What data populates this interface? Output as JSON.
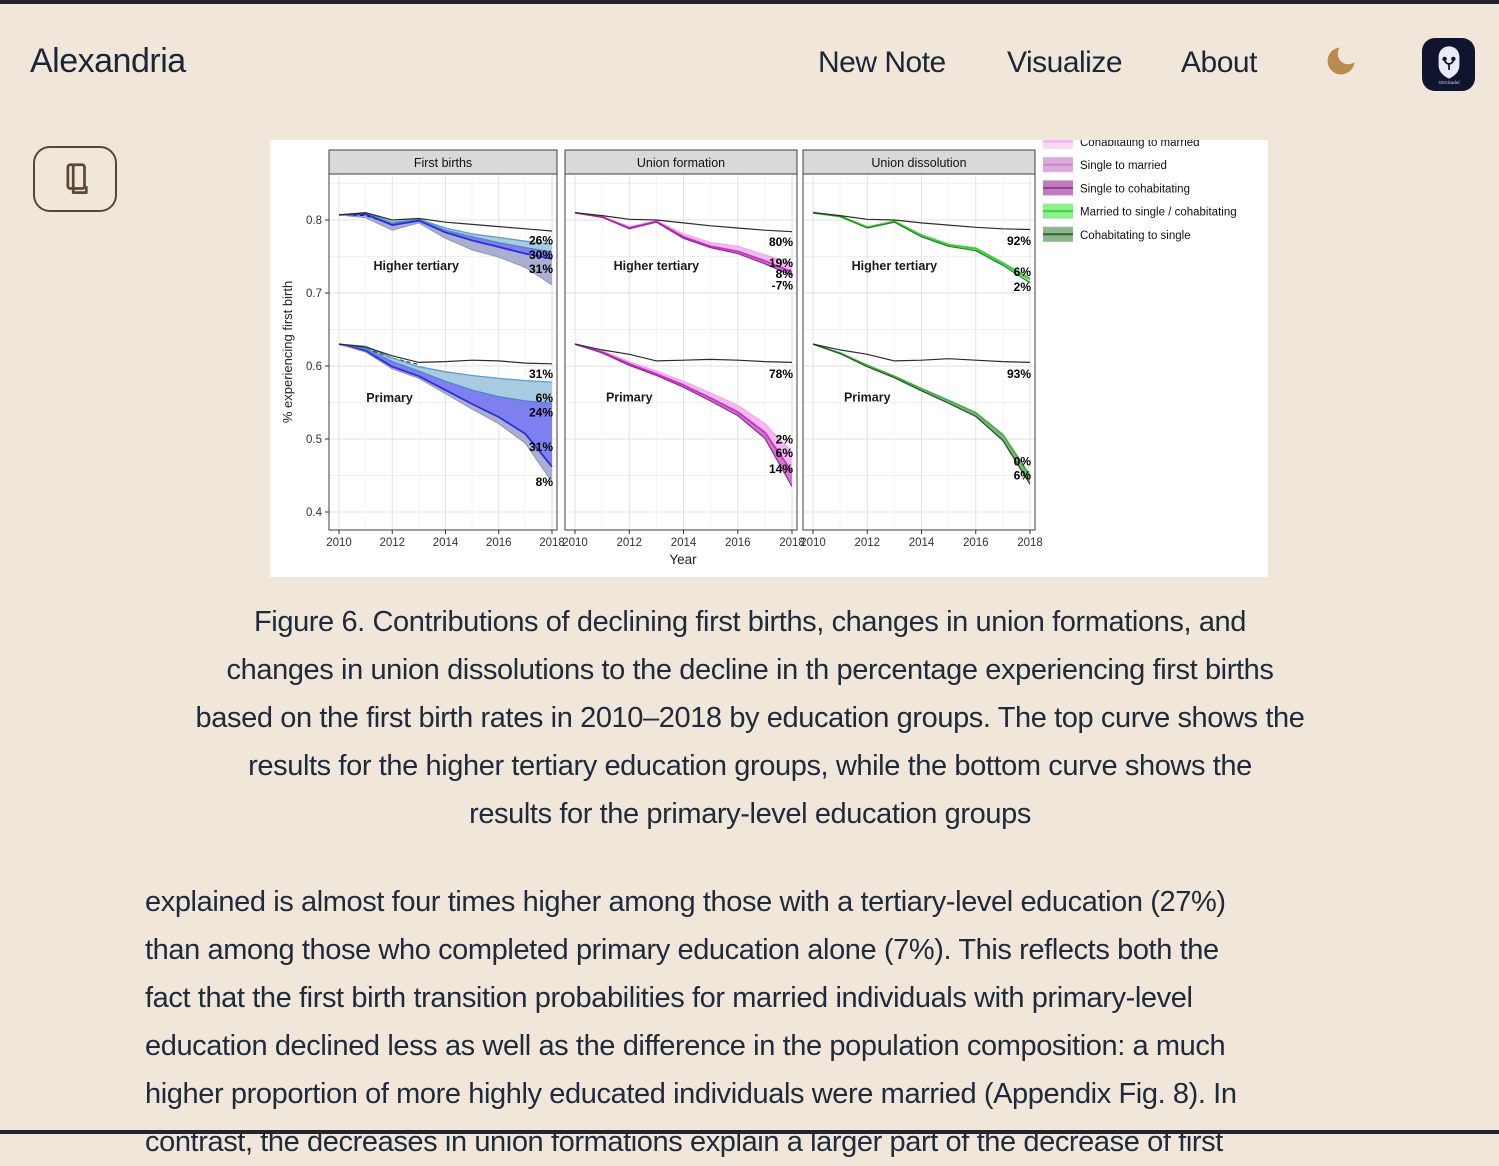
{
  "header": {
    "brand": "Alexandria",
    "nav": [
      {
        "label": "New Note"
      },
      {
        "label": "Visualize"
      },
      {
        "label": "About"
      }
    ],
    "theme_toggle_icon": "moon-icon",
    "logo_text": "GitCitadel"
  },
  "sidebar": {
    "reader_button_icon": "book-icon"
  },
  "figure": {
    "caption_lines": [
      "Figure 6. Contributions of declining first births, changes in union formations, and",
      "changes in union dissolutions to the decline in th percentage experiencing first births",
      "based on the first birth rates in 2010–2018 by education groups. The top curve shows the",
      "results for the higher tertiary education groups, while the bottom curve shows the",
      "results for the primary-level education groups"
    ]
  },
  "article": {
    "paragraph_lines": [
      "explained is almost four times higher among those with a tertiary-level education (27%)",
      "than among those who completed primary education alone (7%). This reflects both the",
      "fact that the first birth transition probabilities for married individuals with primary-level",
      "education declined less as well as the difference in the population composition: a much",
      "higher proportion of more highly educated individuals were married (Appendix Fig. 8). In",
      "contrast, the decreases in union formations explain a larger part of the decrease of first"
    ]
  },
  "chart_data": {
    "type": "area",
    "title": "",
    "xlabel": "Year",
    "ylabel": "% experiencing first birth",
    "x": [
      2010,
      2011,
      2012,
      2013,
      2014,
      2015,
      2016,
      2017,
      2018
    ],
    "xticks": [
      "2010",
      "2012",
      "2014",
      "2016",
      "2018"
    ],
    "yticks": [
      "0.4",
      "0.5",
      "0.6",
      "0.7",
      "0.8"
    ],
    "ylim": [
      0.375,
      0.863
    ],
    "grid": true,
    "legend_position": "top-right outside",
    "legend": [
      {
        "label": "Cohabitating to married",
        "fill": "#fbd7f7",
        "line": "#f3aef0"
      },
      {
        "label": "Single to married",
        "fill": "#dcaade",
        "line": "#c78bcb"
      },
      {
        "label": "Single to cohabitating",
        "fill": "#bf7cbf",
        "line": "#8e3d8e"
      },
      {
        "label": "Married to single / cohabitating",
        "fill": "#8df08d",
        "line": "#3ad43a"
      },
      {
        "label": "Cohabitating to single",
        "fill": "#8fb48f",
        "line": "#2d6b2d"
      }
    ],
    "panels": [
      {
        "title": "First births",
        "groups": [
          {
            "name": "Higher tertiary",
            "name_x": 2012.9,
            "name_v": 0.737,
            "black": [
              0.807,
              0.81,
              0.8,
              0.802,
              0.797,
              0.794,
              0.791,
              0.788,
              0.785
            ],
            "dash_x": [
              2010,
              2011,
              2012,
              2013
            ],
            "dash": [
              0.807,
              0.806,
              0.7935,
              0.8
            ],
            "edges": [
              {
                "values": [
                  0.807,
                  0.81,
                  0.797,
                  0.801,
                  0.789,
                  0.781,
                  0.776,
                  0.771,
                  0.767
                ],
                "stroke": "#5e9ac8",
                "w": 1.3
              },
              {
                "values": [
                  0.807,
                  0.809,
                  0.795,
                  0.8,
                  0.786,
                  0.777,
                  0.769,
                  0.762,
                  0.756
                ],
                "stroke": "#4f86c8",
                "w": 1.3
              },
              {
                "values": [
                  0.807,
                  0.808,
                  0.793,
                  0.799,
                  0.783,
                  0.772,
                  0.763,
                  0.754,
                  0.747
                ],
                "stroke": "#2b2de2",
                "w": 1.8
              },
              {
                "values": [
                  0.807,
                  0.803,
                  0.786,
                  0.796,
                  0.775,
                  0.759,
                  0.749,
                  0.735,
                  0.711
                ],
                "stroke": "#9094be",
                "w": 1.0
              }
            ],
            "bands": [
              {
                "top": 0,
                "bottom": 1,
                "fill": "#a9cbe2",
                "op": 1
              },
              {
                "top": 1,
                "bottom": 2,
                "fill": "#7e80f0",
                "op": 1
              },
              {
                "top": 2,
                "bottom": 3,
                "fill": "#9ba0c9",
                "op": 0.85
              }
            ],
            "labels": [
              {
                "text": "26%",
                "v": 0.772
              },
              {
                "text": "30%",
                "v": 0.752
              },
              {
                "text": "31%",
                "v": 0.733
              }
            ]
          },
          {
            "name": "Primary",
            "name_x": 2011.9,
            "name_v": 0.556,
            "black": [
              0.63,
              0.626,
              0.614,
              0.605,
              0.606,
              0.608,
              0.607,
              0.604,
              0.603
            ],
            "dash_x": [
              2010,
              2011,
              2012,
              2013
            ],
            "dash": [
              0.63,
              0.624,
              0.611,
              0.602
            ],
            "edges": [
              {
                "values": [
                  0.63,
                  0.627,
                  0.611,
                  0.599,
                  0.592,
                  0.587,
                  0.583,
                  0.58,
                  0.578
                ],
                "stroke": "#5e9ac8",
                "w": 1.3
              },
              {
                "values": [
                  0.63,
                  0.624,
                  0.606,
                  0.593,
                  0.579,
                  0.567,
                  0.558,
                  0.552,
                  0.549
                ],
                "stroke": "#4f86c8",
                "w": 1.3
              },
              {
                "values": [
                  0.63,
                  0.621,
                  0.599,
                  0.586,
                  0.567,
                  0.548,
                  0.53,
                  0.507,
                  0.462
                ],
                "stroke": "#2b2de2",
                "w": 1.8
              },
              {
                "values": [
                  0.63,
                  0.619,
                  0.596,
                  0.583,
                  0.562,
                  0.541,
                  0.521,
                  0.494,
                  0.441
                ],
                "stroke": "#9094be",
                "w": 1.0
              }
            ],
            "bands": [
              {
                "top": 0,
                "bottom": 1,
                "fill": "#a9cbe2",
                "op": 1
              },
              {
                "top": 1,
                "bottom": 2,
                "fill": "#7e80f0",
                "op": 1
              },
              {
                "top": 2,
                "bottom": 3,
                "fill": "#9ba0c9",
                "op": 0.85
              }
            ],
            "labels": [
              {
                "text": "31%",
                "v": 0.589
              },
              {
                "text": "6%",
                "v": 0.556
              },
              {
                "text": "24%",
                "v": 0.536
              },
              {
                "text": "31%",
                "v": 0.489
              },
              {
                "text": "8%",
                "v": 0.441
              }
            ]
          }
        ]
      },
      {
        "title": "Union formation",
        "groups": [
          {
            "name": "Higher tertiary",
            "name_x": 2013.0,
            "name_v": 0.737,
            "black": [
              0.81,
              0.806,
              0.801,
              0.8,
              0.796,
              0.792,
              0.789,
              0.786,
              0.784
            ],
            "edges": [
              {
                "values": [
                  0.81,
                  0.805,
                  0.791,
                  0.799,
                  0.781,
                  0.769,
                  0.764,
                  0.752,
                  0.741
                ],
                "stroke": "#f0a6ea",
                "w": 1.2
              },
              {
                "values": [
                  0.81,
                  0.804,
                  0.789,
                  0.798,
                  0.777,
                  0.764,
                  0.757,
                  0.744,
                  0.729
                ],
                "stroke": "#cb2fcb",
                "w": 1.8
              },
              {
                "values": [
                  0.81,
                  0.804,
                  0.788,
                  0.797,
                  0.775,
                  0.762,
                  0.754,
                  0.74,
                  0.724
                ],
                "stroke": "#8e2a8e",
                "w": 1.2
              }
            ],
            "bands": [
              {
                "top": 0,
                "bottom": 1,
                "fill": "#f4b9ef",
                "op": 1
              },
              {
                "top": 1,
                "bottom": 2,
                "fill": "#c66ac4",
                "op": 0.9
              }
            ],
            "labels": [
              {
                "text": "80%",
                "v": 0.77
              },
              {
                "text": "19%",
                "v": 0.741
              },
              {
                "text": "8%",
                "v": 0.726
              },
              {
                "text": "-7%",
                "v": 0.71
              }
            ]
          },
          {
            "name": "Primary",
            "name_x": 2012.0,
            "name_v": 0.557,
            "black": [
              0.63,
              0.622,
              0.616,
              0.607,
              0.608,
              0.609,
              0.608,
              0.606,
              0.605
            ],
            "edges": [
              {
                "values": [
                  0.63,
                  0.621,
                  0.606,
                  0.593,
                  0.579,
                  0.563,
                  0.546,
                  0.521,
                  0.482
                ],
                "stroke": "#f0a6ea",
                "w": 1.2
              },
              {
                "values": [
                  0.63,
                  0.619,
                  0.603,
                  0.589,
                  0.574,
                  0.556,
                  0.537,
                  0.509,
                  0.455
                ],
                "stroke": "#cb2fcb",
                "w": 1.8
              },
              {
                "values": [
                  0.63,
                  0.618,
                  0.601,
                  0.587,
                  0.571,
                  0.552,
                  0.532,
                  0.501,
                  0.435
                ],
                "stroke": "#8e2a8e",
                "w": 1.2
              }
            ],
            "bands": [
              {
                "top": 0,
                "bottom": 1,
                "fill": "#f4b9ef",
                "op": 1
              },
              {
                "top": 1,
                "bottom": 2,
                "fill": "#c66ac4",
                "op": 0.9
              }
            ],
            "labels": [
              {
                "text": "78%",
                "v": 0.589
              },
              {
                "text": "2%",
                "v": 0.499
              },
              {
                "text": "6%",
                "v": 0.481
              },
              {
                "text": "14%",
                "v": 0.459
              }
            ]
          }
        ]
      },
      {
        "title": "Union dissolution",
        "groups": [
          {
            "name": "Higher tertiary",
            "name_x": 2013.0,
            "name_v": 0.737,
            "black": [
              0.81,
              0.806,
              0.801,
              0.8,
              0.796,
              0.793,
              0.79,
              0.788,
              0.787
            ],
            "edges": [
              {
                "values": [
                  0.81,
                  0.805,
                  0.79,
                  0.798,
                  0.779,
                  0.766,
                  0.761,
                  0.741,
                  0.719
                ],
                "stroke": "#35d435",
                "w": 2.2
              },
              {
                "values": [
                  0.81,
                  0.805,
                  0.789,
                  0.797,
                  0.777,
                  0.764,
                  0.758,
                  0.738,
                  0.714
                ],
                "stroke": "#2d7a2d",
                "w": 1.2
              }
            ],
            "bands": [
              {
                "top": 0,
                "bottom": 1,
                "fill": "#9cec9c",
                "op": 0.9
              }
            ],
            "labels": [
              {
                "text": "92%",
                "v": 0.771
              },
              {
                "text": "6%",
                "v": 0.729
              },
              {
                "text": "2%",
                "v": 0.708
              }
            ]
          },
          {
            "name": "Primary",
            "name_x": 2012.0,
            "name_v": 0.557,
            "black": [
              0.63,
              0.622,
              0.616,
              0.607,
              0.608,
              0.61,
              0.608,
              0.606,
              0.605
            ],
            "edges": [
              {
                "values": [
                  0.63,
                  0.618,
                  0.601,
                  0.586,
                  0.569,
                  0.553,
                  0.536,
                  0.506,
                  0.45
                ],
                "stroke": "#3fae3f",
                "w": 1.6
              },
              {
                "values": [
                  0.63,
                  0.617,
                  0.599,
                  0.584,
                  0.566,
                  0.549,
                  0.531,
                  0.498,
                  0.438
                ],
                "stroke": "#1e5c1e",
                "w": 1.3
              }
            ],
            "bands": [
              {
                "top": 0,
                "bottom": 1,
                "fill": "#7dac7d",
                "op": 0.95
              }
            ],
            "labels": [
              {
                "text": "93%",
                "v": 0.589
              },
              {
                "text": "0%",
                "v": 0.469
              },
              {
                "text": "6%",
                "v": 0.45
              }
            ]
          }
        ]
      }
    ]
  }
}
